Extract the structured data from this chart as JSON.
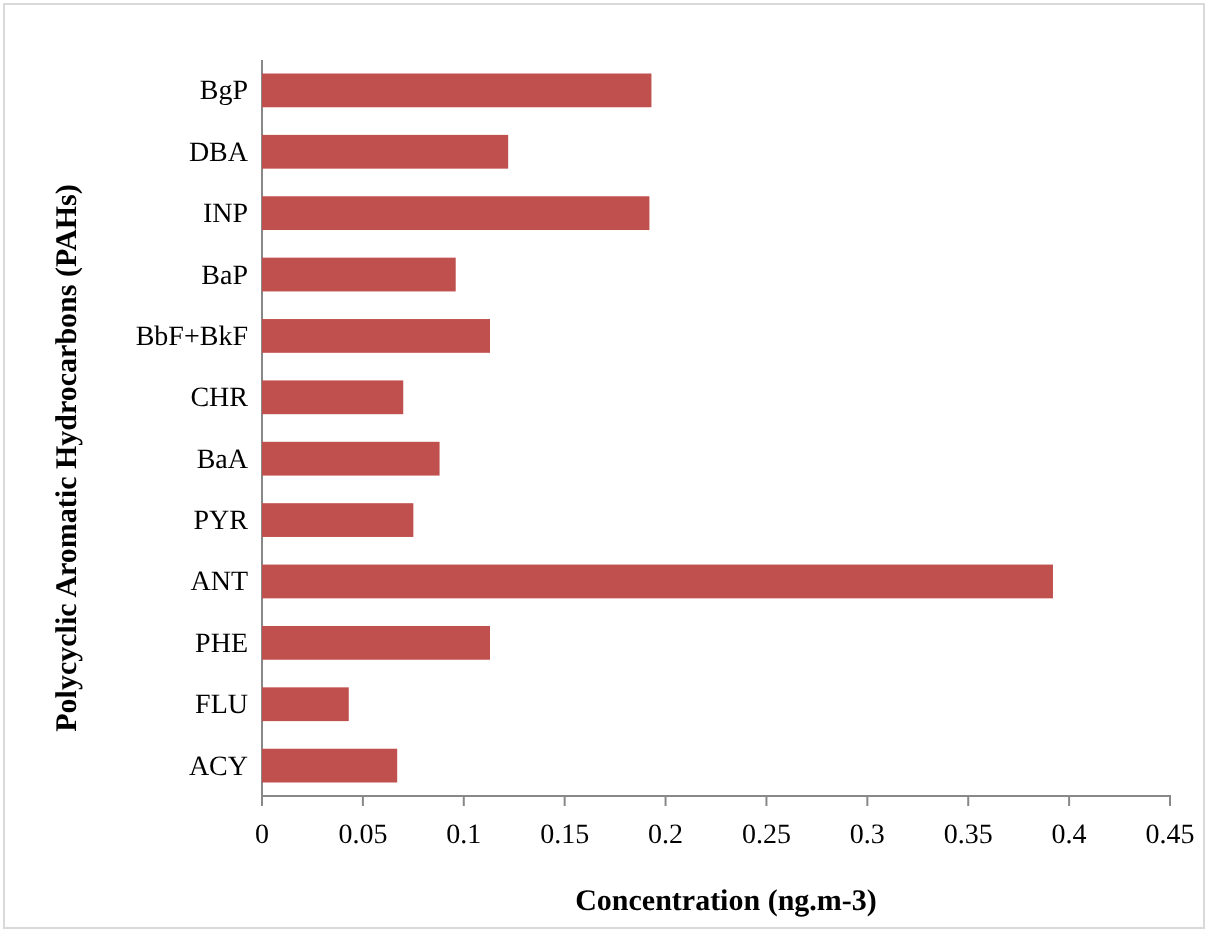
{
  "chart_data": {
    "type": "bar",
    "orientation": "horizontal",
    "xlabel": "Concentration (ng.m-3)",
    "ylabel": "Polycyclic Aromatic Hydrocarbons (PAHs)",
    "categories": [
      "BgP",
      "DBA",
      "INP",
      "BaP",
      "BbF+BkF",
      "CHR",
      "BaA",
      "PYR",
      "ANT",
      "PHE",
      "FLU",
      "ACY"
    ],
    "values": [
      0.193,
      0.122,
      0.192,
      0.096,
      0.113,
      0.07,
      0.088,
      0.075,
      0.392,
      0.113,
      0.043,
      0.067
    ],
    "color": "#c0504d",
    "xlim": [
      0,
      0.45
    ],
    "xticks": [
      0,
      0.05,
      0.1,
      0.15,
      0.2,
      0.25,
      0.3,
      0.35,
      0.4,
      0.45
    ],
    "grid": false
  }
}
